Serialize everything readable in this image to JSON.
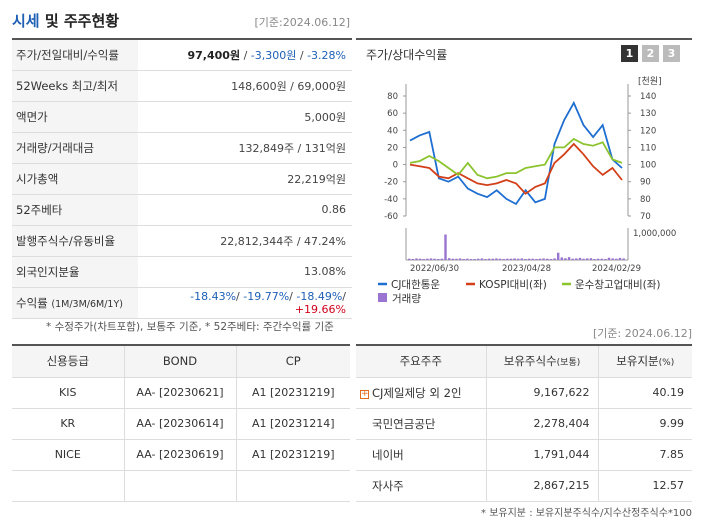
{
  "header": {
    "title_part1": "시세",
    "title_part2": " 및 주주현황",
    "base_date": "[기준:2024.06.12]"
  },
  "price_rows": [
    {
      "label": "주가/전일대비/수익률",
      "price": "97,400원",
      "sep1": " / ",
      "change": "-3,300원",
      "sep2": " / ",
      "rate": "-3.28%"
    },
    {
      "label": "52Weeks 최고/최저",
      "value": "148,600원 / 69,000원"
    },
    {
      "label": "액면가",
      "value": "5,000원"
    },
    {
      "label": "거래량/거래대금",
      "value": "132,849주 / 131억원"
    },
    {
      "label": "시가총액",
      "value": "22,219억원"
    },
    {
      "label": "52주베타",
      "value": "0.86"
    },
    {
      "label": "발행주식수/유동비율",
      "value": "22,812,344주 / 47.24%"
    },
    {
      "label": "외국인지분율",
      "value": "13.08%"
    },
    {
      "label": "수익률",
      "label_sub": "(1M/3M/6M/1Y)",
      "r1": "-18.43%",
      "r2": "-19.77%",
      "r3": "-18.49%",
      "r4": "+19.66%"
    }
  ],
  "note1": "* 수정주가(차트포함), 보통주 기준, * 52주베타: 주간수익률 기준",
  "chart": {
    "title": "주가/상대수익률",
    "tabs": [
      "1",
      "2",
      "3"
    ],
    "right_unit": "[천원]",
    "vol_label": "1,000,000",
    "legend": [
      "CJ대한통운",
      "KOSPI대비(좌)",
      "운수창고업대비(좌)",
      "거래량"
    ],
    "colors": {
      "stock": "#1f6fd1",
      "kospi": "#d2401a",
      "sector": "#8cc42e",
      "volume": "#9a74d1"
    }
  },
  "chart_data": {
    "type": "line",
    "x_ticks": [
      "2022/06/30",
      "2023/04/28",
      "2024/02/29"
    ],
    "left_axis": {
      "ticks": [
        80,
        60,
        40,
        20,
        0,
        -20,
        -40,
        -60
      ],
      "range": [
        -60,
        80
      ]
    },
    "right_axis": {
      "ticks": [
        140,
        130,
        120,
        110,
        100,
        90,
        80,
        70
      ],
      "range": [
        70,
        140
      ]
    },
    "series": [
      {
        "name": "CJ대한통운",
        "axis": "right",
        "values": [
          114,
          117,
          119,
          92,
          90,
          93,
          86,
          83,
          81,
          85,
          80,
          77,
          85,
          78,
          80,
          112,
          126,
          136,
          123,
          116,
          123,
          103,
          98
        ]
      },
      {
        "name": "KOSPI대비(좌)",
        "axis": "left",
        "values": [
          0,
          -2,
          -4,
          -14,
          -16,
          -10,
          -16,
          -22,
          -24,
          -22,
          -18,
          -22,
          -34,
          -26,
          -22,
          2,
          12,
          24,
          12,
          -2,
          -12,
          -4,
          -18
        ]
      },
      {
        "name": "운수창고업대비(좌)",
        "axis": "left",
        "values": [
          2,
          4,
          10,
          4,
          -4,
          -12,
          2,
          -12,
          -16,
          -14,
          -10,
          -10,
          -4,
          -2,
          0,
          20,
          20,
          30,
          24,
          22,
          26,
          6,
          2
        ]
      }
    ],
    "volume": {
      "name": "거래량",
      "max_label": "1,000,000",
      "values": [
        0.05,
        0.04,
        0.06,
        0.05,
        0.04,
        0.05,
        0.06,
        0.05,
        0.04,
        0.05,
        0.98,
        0.07,
        0.05,
        0.05,
        0.06,
        0.04,
        0.05,
        0.04,
        0.04,
        0.05,
        0.06,
        0.04,
        0.05,
        0.05,
        0.06,
        0.05,
        0.04,
        0.05,
        0.05,
        0.06,
        0.05,
        0.06,
        0.04,
        0.05,
        0.05,
        0.04,
        0.05,
        0.06,
        0.05,
        0.04,
        0.06,
        0.28,
        0.1,
        0.07,
        0.11,
        0.05,
        0.06,
        0.08,
        0.05,
        0.06,
        0.07,
        0.04,
        0.05,
        0.05,
        0.04,
        0.09,
        0.06,
        0.05,
        0.08,
        0.06
      ]
    }
  },
  "base_date2": "[기준: 2024.06.12]",
  "credit": {
    "headers": [
      "신용등급",
      "BOND",
      "CP"
    ],
    "rows": [
      [
        "KIS",
        "AA-   [20230621]",
        "A1   [20231219]"
      ],
      [
        "KR",
        "AA-   [20230614]",
        "A1   [20231214]"
      ],
      [
        "NICE",
        "AA-   [20230619]",
        "A1   [20231219]"
      ],
      [
        "",
        "",
        ""
      ]
    ]
  },
  "holders": {
    "headers": [
      "주요주주",
      "보유주식수",
      "(보통)",
      "보유지분",
      "(%)"
    ],
    "rows": [
      [
        "CJ제일제당 외 2인",
        "9,167,622",
        "40.19"
      ],
      [
        "국민연금공단",
        "2,278,404",
        "9.99"
      ],
      [
        "네이버",
        "1,791,044",
        "7.85"
      ],
      [
        "자사주",
        "2,867,215",
        "12.57"
      ]
    ]
  },
  "note2": "* 보유지분 : 보유지분주식수/지수산정주식수*100"
}
